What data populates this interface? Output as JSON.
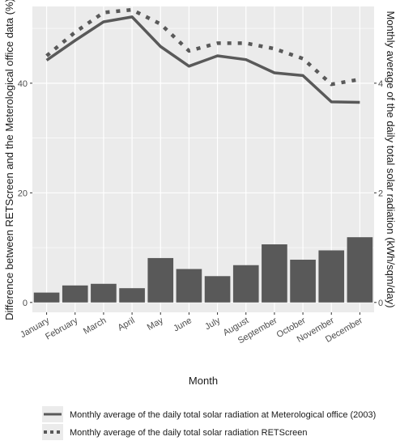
{
  "chart_data": {
    "type": "bar+line",
    "xlabel": "Month",
    "ylabel_left": "Difference between RETScreen and the Meterological office data (%)",
    "ylabel_right": "Monthly average of the daily total solar radiation (kWh/sqm/day)",
    "categories": [
      "January",
      "February",
      "March",
      "April",
      "May",
      "June",
      "July",
      "August",
      "September",
      "October",
      "November",
      "December"
    ],
    "left_axis": {
      "ylim": [
        -1.8,
        54
      ],
      "ticks": [
        0,
        20,
        40
      ]
    },
    "right_axis": {
      "ylim": [
        -0.18,
        5.4
      ],
      "ticks": [
        0,
        2,
        4
      ],
      "scale_to_left": 10
    },
    "bars": {
      "values": [
        1.8,
        3.1,
        3.4,
        2.6,
        8.1,
        6.1,
        4.8,
        6.8,
        10.6,
        7.8,
        9.5,
        11.9
      ]
    },
    "series": [
      {
        "name": "Monthly average of the daily total solar radiation at Meterological office (2003)",
        "style": "solid",
        "values": [
          4.42,
          4.78,
          5.12,
          5.21,
          4.67,
          4.31,
          4.5,
          4.43,
          4.19,
          4.14,
          3.66,
          3.65
        ]
      },
      {
        "name": "Monthly average of the daily total solar radiation RETScreen",
        "style": "dotted",
        "values": [
          4.5,
          4.93,
          5.29,
          5.34,
          5.08,
          4.59,
          4.73,
          4.73,
          4.63,
          4.45,
          3.98,
          4.07
        ]
      }
    ],
    "grid": true,
    "legend_position": "bottom",
    "colors": {
      "panel": "#ebebeb",
      "grid": "#ffffff",
      "bars": "#595959",
      "lines": "#595959"
    }
  }
}
